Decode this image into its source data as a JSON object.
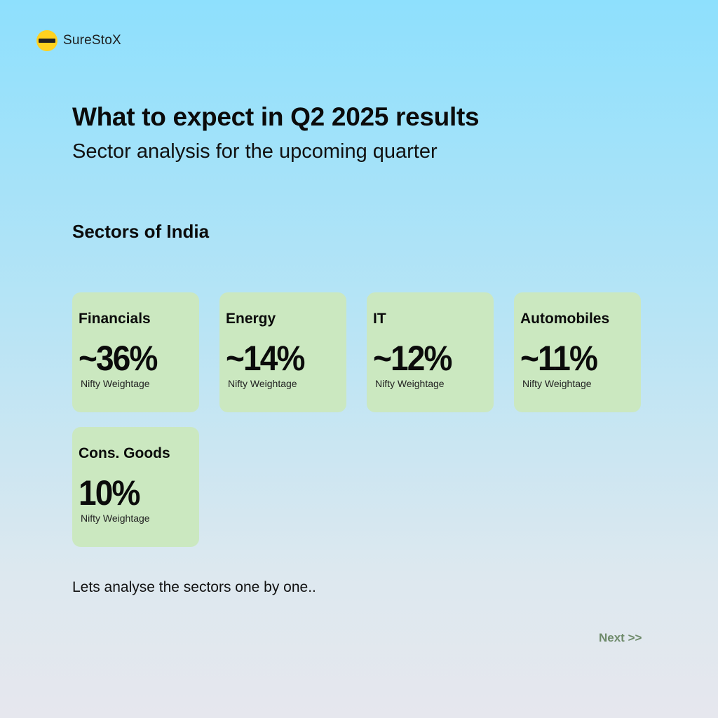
{
  "brand": {
    "name": "SureStoX"
  },
  "header": {
    "title": "What to expect in Q2 2025 results",
    "subtitle": "Sector analysis for the upcoming quarter"
  },
  "section": {
    "heading": "Sectors of India"
  },
  "sectors": [
    {
      "label": "Financials",
      "value": "~36%",
      "caption": "Nifty Weightage"
    },
    {
      "label": "Energy",
      "value": "~14%",
      "caption": "Nifty Weightage"
    },
    {
      "label": "IT",
      "value": "~12%",
      "caption": "Nifty Weightage"
    },
    {
      "label": "Automobiles",
      "value": "~11%",
      "caption": "Nifty Weightage"
    },
    {
      "label": "Cons. Goods",
      "value": "10%",
      "caption": "Nifty Weightage"
    }
  ],
  "footer": {
    "text": "Lets analyse the sectors one by one..",
    "next_label": "Next >>"
  },
  "colors": {
    "card_background": "#cbe8c0",
    "logo_yellow": "#ffd21f",
    "next_link": "#6e8a6a"
  }
}
